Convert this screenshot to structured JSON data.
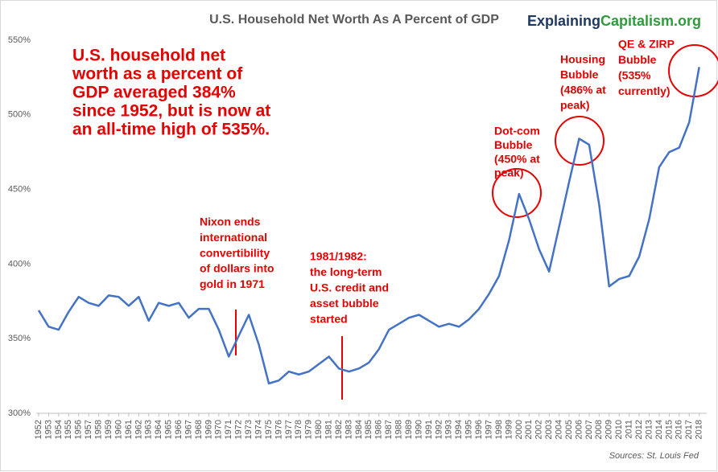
{
  "chart_data": {
    "type": "line",
    "title": "U.S. Household Net Worth As A Percent of GDP",
    "brand": [
      "Explaining",
      "Capitalism.org"
    ],
    "source": "Sources: St. Louis Fed",
    "x": [
      1952,
      1953,
      1954,
      1955,
      1956,
      1957,
      1958,
      1959,
      1960,
      1961,
      1962,
      1963,
      1964,
      1965,
      1966,
      1967,
      1968,
      1969,
      1970,
      1971,
      1972,
      1973,
      1974,
      1975,
      1976,
      1977,
      1978,
      1979,
      1980,
      1981,
      1982,
      1983,
      1984,
      1985,
      1986,
      1987,
      1988,
      1989,
      1990,
      1991,
      1992,
      1993,
      1994,
      1995,
      1996,
      1997,
      1998,
      1999,
      2000,
      2001,
      2002,
      2003,
      2004,
      2005,
      2006,
      2007,
      2008,
      2009,
      2010,
      2011,
      2012,
      2013,
      2014,
      2015,
      2016,
      2017,
      2018
    ],
    "series": [
      {
        "name": "Household net worth % of GDP",
        "color": "#4472c4",
        "values": [
          369,
          358,
          356,
          368,
          378,
          374,
          372,
          379,
          378,
          372,
          378,
          362,
          374,
          372,
          374,
          364,
          370,
          370,
          356,
          338,
          352,
          366,
          346,
          320,
          322,
          328,
          326,
          328,
          333,
          338,
          330,
          328,
          330,
          334,
          343,
          356,
          360,
          364,
          366,
          362,
          358,
          360,
          358,
          363,
          370,
          380,
          392,
          416,
          447,
          430,
          410,
          395,
          425,
          455,
          484,
          480,
          440,
          385,
          390,
          392,
          405,
          430,
          465,
          475,
          478,
          495,
          532
        ]
      }
    ],
    "xlim": [
      1952,
      2018.75
    ],
    "xticks": [
      1952,
      1953,
      1954,
      1955,
      1956,
      1957,
      1958,
      1959,
      1960,
      1961,
      1962,
      1963,
      1964,
      1965,
      1966,
      1967,
      1968,
      1969,
      1970,
      1971,
      1972,
      1973,
      1974,
      1975,
      1976,
      1977,
      1978,
      1979,
      1980,
      1981,
      1982,
      1983,
      1984,
      1985,
      1986,
      1987,
      1988,
      1989,
      1990,
      1991,
      1992,
      1993,
      1994,
      1995,
      1996,
      1997,
      1998,
      1999,
      2000,
      2001,
      2002,
      2003,
      2004,
      2005,
      2006,
      2007,
      2008,
      2009,
      2010,
      2011,
      2012,
      2013,
      2014,
      2015,
      2016,
      2017,
      2018
    ],
    "ylim": [
      300,
      550
    ],
    "yticks": [
      {
        "value": 300,
        "label": "300%"
      },
      {
        "value": 350,
        "label": "350%"
      },
      {
        "value": 400,
        "label": "400%"
      },
      {
        "value": 450,
        "label": "450%"
      },
      {
        "value": 500,
        "label": "500%"
      },
      {
        "value": 550,
        "label": "550%"
      }
    ],
    "grid": false,
    "annotations": [
      {
        "lines": [
          "U.S. household net",
          "worth as a percent of",
          "GDP averaged 384%",
          "since 1952, but is now at",
          "an all-time high of 535%."
        ]
      },
      {
        "lines": [
          "Nixon ends",
          "international",
          "convertibility",
          "of dollars into",
          "gold in 1971"
        ]
      },
      {
        "lines": [
          "1981/1982:",
          "the long-term",
          "U.S. credit and",
          "asset bubble",
          "started"
        ]
      },
      {
        "lines": [
          "Dot-com",
          "Bubble",
          "(450% at",
          "peak)"
        ]
      },
      {
        "lines": [
          "Housing",
          "Bubble",
          "(486% at",
          "peak)"
        ]
      },
      {
        "lines": [
          "QE & ZIRP",
          "Bubble",
          "(535%",
          "currently)"
        ]
      }
    ]
  }
}
